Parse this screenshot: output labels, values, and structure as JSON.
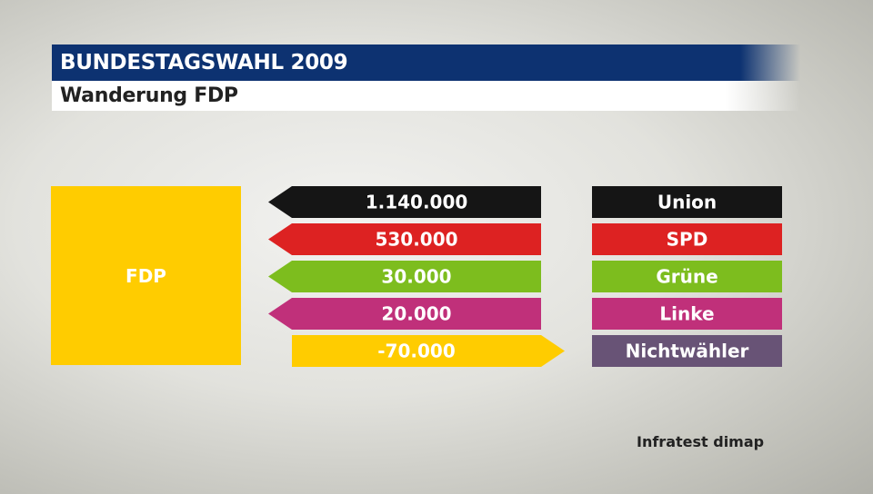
{
  "header": {
    "title": "BUNDESTAGSWAHL 2009",
    "subtitle": "Wanderung FDP"
  },
  "party": {
    "label": "FDP",
    "color": "#ffcc00"
  },
  "source": "Infratest dimap",
  "chart_data": {
    "type": "bar",
    "title": "Wanderung FDP",
    "focus_party": "FDP",
    "categories": [
      "Union",
      "SPD",
      "Grüne",
      "Linke",
      "Nichtwähler"
    ],
    "values": [
      1140000,
      530000,
      30000,
      20000,
      -70000
    ],
    "value_labels": [
      "1.140.000",
      "530.000",
      "30.000",
      "20.000",
      "-70.000"
    ],
    "colors": [
      "#151515",
      "#dd2222",
      "#7dbd1e",
      "#c0307a",
      "#685376"
    ],
    "value_colors": [
      "#151515",
      "#dd2222",
      "#7dbd1e",
      "#c0307a",
      "#ffcc00"
    ]
  }
}
